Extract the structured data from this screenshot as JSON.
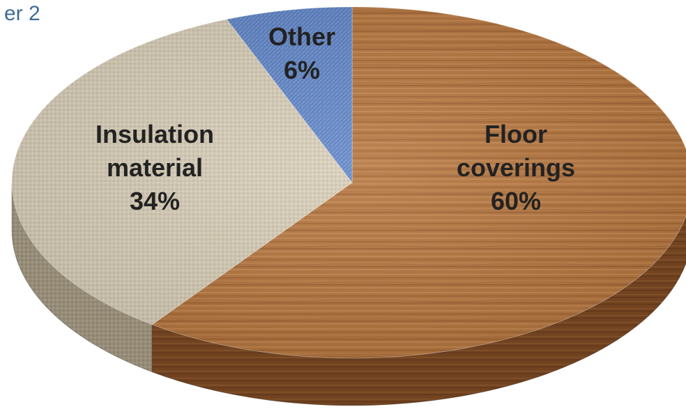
{
  "page": {
    "title_fragment": "er 2"
  },
  "chart_data": {
    "type": "pie",
    "title": "",
    "slices": [
      {
        "label_lines": [
          "Floor",
          "coverings"
        ],
        "percent_label": "60%",
        "value": 60,
        "color": "#b0703a",
        "texture": "wood"
      },
      {
        "label_lines": [
          "Insulation",
          "material"
        ],
        "percent_label": "34%",
        "value": 34,
        "color": "#d3c8b2",
        "texture": "canvas"
      },
      {
        "label_lines": [
          "Other"
        ],
        "percent_label": "6%",
        "value": 6,
        "color": "#5a7fbf",
        "texture": "denim"
      }
    ],
    "start_angle_deg": 0,
    "direction": "clockwise",
    "style": "3d"
  }
}
